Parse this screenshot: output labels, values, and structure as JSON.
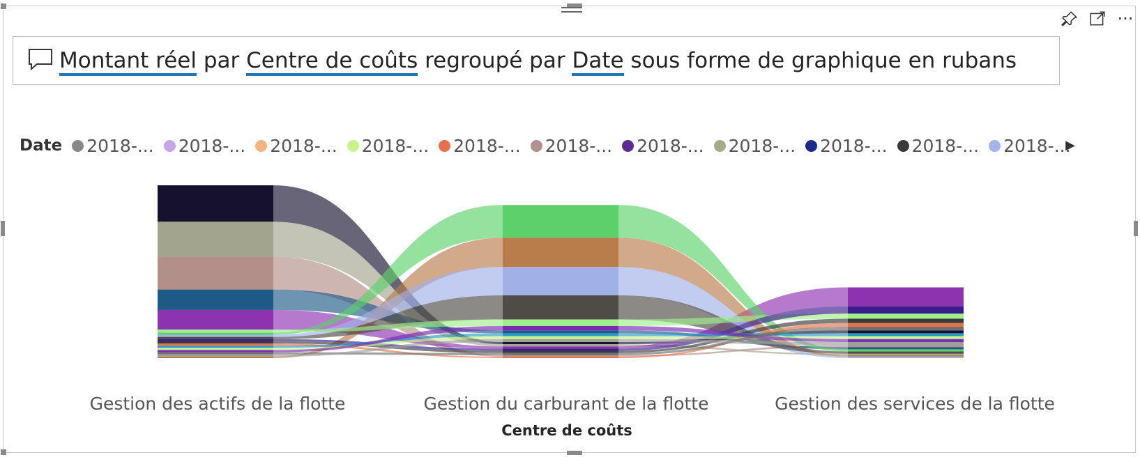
{
  "qa": {
    "prefix_icon": "comment-icon",
    "measure": "Montant réel",
    "by": "par",
    "category": "Centre de coûts",
    "grouped": "regroupé par",
    "series_field": "Date",
    "suffix": "sous forme de graphique en rubans"
  },
  "toolbar": {
    "pin_icon": "pin-icon",
    "focus_icon": "focus-mode-icon",
    "more_icon": "more-options-icon",
    "more_label": "···"
  },
  "chart_data": {
    "type": "ribbon",
    "legend_title": "Date",
    "legend_position": "top",
    "xlabel": "Centre de coûts",
    "ylabel": "",
    "categories": [
      "Gestion des actifs de la flotte",
      "Gestion du carburant de la flotte",
      "Gestion des services de la flotte"
    ],
    "legend": [
      {
        "label": "2018-...",
        "color": "#888888"
      },
      {
        "label": "2018-...",
        "color": "#c3a6e8"
      },
      {
        "label": "2018-...",
        "color": "#f4b581"
      },
      {
        "label": "2018-...",
        "color": "#c6f48a"
      },
      {
        "label": "2018-...",
        "color": "#e8704a"
      },
      {
        "label": "2018-...",
        "color": "#b49090"
      },
      {
        "label": "2018-...",
        "color": "#5a2d91"
      },
      {
        "label": "2018-...",
        "color": "#a4aa8c"
      },
      {
        "label": "2018-...",
        "color": "#1e2a8a"
      },
      {
        "label": "2018-...",
        "color": "#3a3a3a"
      },
      {
        "label": "2018-...",
        "color": "#a2b4ea"
      }
    ],
    "series": [
      {
        "color": "#16122e",
        "values": [
          50,
          3,
          4
        ]
      },
      {
        "color": "#a3a48e",
        "values": [
          48,
          3,
          2
        ]
      },
      {
        "color": "#b28f88",
        "values": [
          45,
          2,
          3
        ]
      },
      {
        "color": "#8e33b0",
        "values": [
          27,
          3,
          26
        ]
      },
      {
        "color": "#1f5a86",
        "values": [
          28,
          4,
          3
        ]
      },
      {
        "color": "#5cd16a",
        "values": [
          3,
          45,
          3
        ]
      },
      {
        "color": "#b87d4a",
        "values": [
          2,
          40,
          2
        ]
      },
      {
        "color": "#a2b0e8",
        "values": [
          3,
          39,
          2
        ]
      },
      {
        "color": "#4f4b46",
        "values": [
          3,
          33,
          3
        ]
      },
      {
        "color": "#9ff08a",
        "values": [
          4,
          9,
          7
        ]
      },
      {
        "color": "#3a1c8c",
        "values": [
          3,
          3,
          10
        ]
      },
      {
        "color": "#3a3a3a",
        "values": [
          3,
          3,
          6
        ]
      },
      {
        "color": "#e8704a",
        "values": [
          3,
          2,
          5
        ]
      },
      {
        "color": "#2a9bc4",
        "values": [
          3,
          4,
          4
        ]
      },
      {
        "color": "#c6f48a",
        "values": [
          3,
          4,
          4
        ]
      },
      {
        "color": "#7a2ab4",
        "values": [
          3,
          6,
          4
        ]
      },
      {
        "color": "#6f6f6f",
        "values": [
          3,
          3,
          5
        ]
      },
      {
        "color": "#9e9e9e",
        "values": [
          3,
          4,
          4
        ]
      }
    ]
  }
}
